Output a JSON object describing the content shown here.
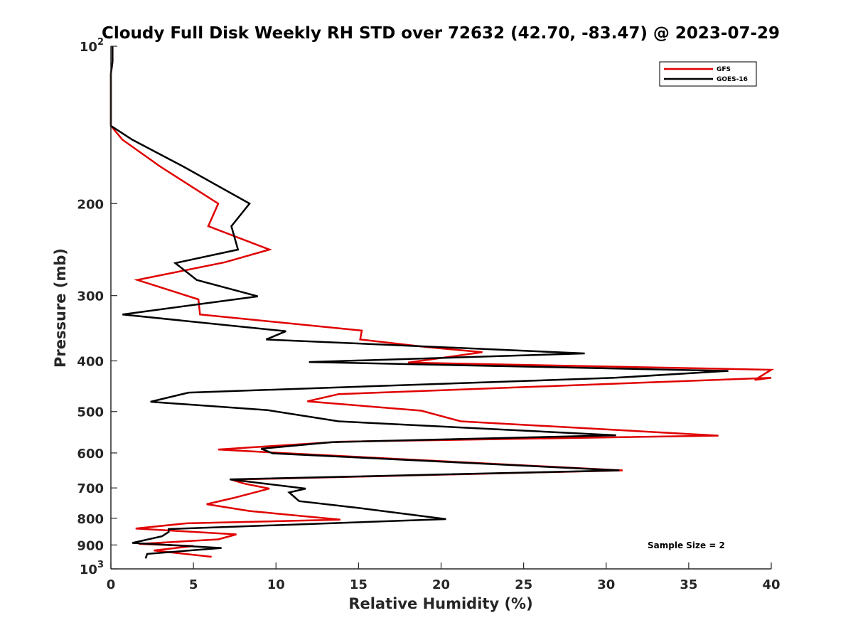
{
  "chart_data": {
    "type": "line",
    "title": "Cloudy Full Disk Weekly RH STD over 72632 (42.70, -83.47) @ 2023-07-29",
    "xlabel": "Relative Humidity (%)",
    "ylabel": "Pressure (mb)",
    "xlim": [
      0,
      40
    ],
    "ylim": [
      100,
      1000
    ],
    "yscale": "log",
    "y_reversed": true,
    "x_ticks": [
      "0",
      "5",
      "10",
      "15",
      "20",
      "25",
      "30",
      "35",
      "40"
    ],
    "y_ticks": [
      {
        "value": 100,
        "base": "10",
        "sup": "2"
      },
      {
        "value": 200,
        "base": "200",
        "sup": ""
      },
      {
        "value": 300,
        "base": "300",
        "sup": ""
      },
      {
        "value": 400,
        "base": "400",
        "sup": ""
      },
      {
        "value": 500,
        "base": "500",
        "sup": ""
      },
      {
        "value": 600,
        "base": "600",
        "sup": ""
      },
      {
        "value": 700,
        "base": "700",
        "sup": ""
      },
      {
        "value": 800,
        "base": "800",
        "sup": ""
      },
      {
        "value": 900,
        "base": "900",
        "sup": ""
      },
      {
        "value": 1000,
        "base": "10",
        "sup": "3"
      }
    ],
    "grid": false,
    "legend_position": "top-right",
    "annotation": "Sample Size = 2",
    "series": [
      {
        "name": "GFS",
        "color": "#e00000",
        "points": [
          [
            0.1,
            100
          ],
          [
            0.1,
            107
          ],
          [
            0.0,
            113
          ],
          [
            0.0,
            120
          ],
          [
            0.0,
            127
          ],
          [
            0.0,
            134
          ],
          [
            0.0,
            142
          ],
          [
            0.7,
            151
          ],
          [
            3.0,
            170
          ],
          [
            6.5,
            200
          ],
          [
            5.9,
            221
          ],
          [
            9.6,
            245
          ],
          [
            6.9,
            259
          ],
          [
            1.6,
            280
          ],
          [
            5.3,
            305
          ],
          [
            5.4,
            326
          ],
          [
            15.2,
            350
          ],
          [
            15.1,
            364
          ],
          [
            19.0,
            376
          ],
          [
            22.5,
            385
          ],
          [
            18.0,
            403
          ],
          [
            40.0,
            416
          ],
          [
            39.0,
            435
          ],
          [
            40.0,
            431
          ],
          [
            13.8,
            463
          ],
          [
            11.9,
            478
          ],
          [
            18.8,
            498
          ],
          [
            21.2,
            522
          ],
          [
            36.8,
            556
          ],
          [
            13.9,
            571
          ],
          [
            6.5,
            591
          ],
          [
            9.8,
            599
          ],
          [
            31.0,
            648
          ],
          [
            7.3,
            675
          ],
          [
            8.1,
            687
          ],
          [
            9.6,
            702
          ],
          [
            7.4,
            732
          ],
          [
            5.8,
            752
          ],
          [
            8.4,
            775
          ],
          [
            13.9,
            805
          ],
          [
            4.6,
            818
          ],
          [
            1.5,
            837
          ],
          [
            7.6,
            859
          ],
          [
            6.5,
            878
          ],
          [
            1.7,
            896
          ],
          [
            5.0,
            904
          ],
          [
            2.6,
            922
          ],
          [
            6.1,
            948
          ]
        ]
      },
      {
        "name": "GOES-16",
        "color": "#000000",
        "points": [
          [
            0.1,
            100
          ],
          [
            0.1,
            107
          ],
          [
            0.0,
            113
          ],
          [
            0.0,
            120
          ],
          [
            0.0,
            127
          ],
          [
            0.0,
            134
          ],
          [
            0.0,
            142
          ],
          [
            1.3,
            151
          ],
          [
            4.4,
            170
          ],
          [
            8.4,
            200
          ],
          [
            7.3,
            221
          ],
          [
            7.7,
            245
          ],
          [
            3.9,
            260
          ],
          [
            5.2,
            280
          ],
          [
            8.9,
            301
          ],
          [
            0.7,
            326
          ],
          [
            10.6,
            351
          ],
          [
            9.4,
            364
          ],
          [
            28.7,
            387
          ],
          [
            12.0,
            402
          ],
          [
            37.4,
            418
          ],
          [
            30.5,
            431
          ],
          [
            4.7,
            460
          ],
          [
            2.4,
            479
          ],
          [
            9.5,
            497
          ],
          [
            13.8,
            522
          ],
          [
            30.6,
            555
          ],
          [
            13.4,
            572
          ],
          [
            9.1,
            589
          ],
          [
            9.8,
            601
          ],
          [
            30.8,
            648
          ],
          [
            7.2,
            674
          ],
          [
            11.8,
            702
          ],
          [
            10.8,
            714
          ],
          [
            11.4,
            742
          ],
          [
            14.8,
            763
          ],
          [
            20.3,
            803
          ],
          [
            3.5,
            839
          ],
          [
            3.5,
            850
          ],
          [
            3.1,
            866
          ],
          [
            1.3,
            892
          ],
          [
            6.7,
            912
          ],
          [
            2.2,
            936
          ],
          [
            2.1,
            955
          ]
        ]
      }
    ]
  }
}
